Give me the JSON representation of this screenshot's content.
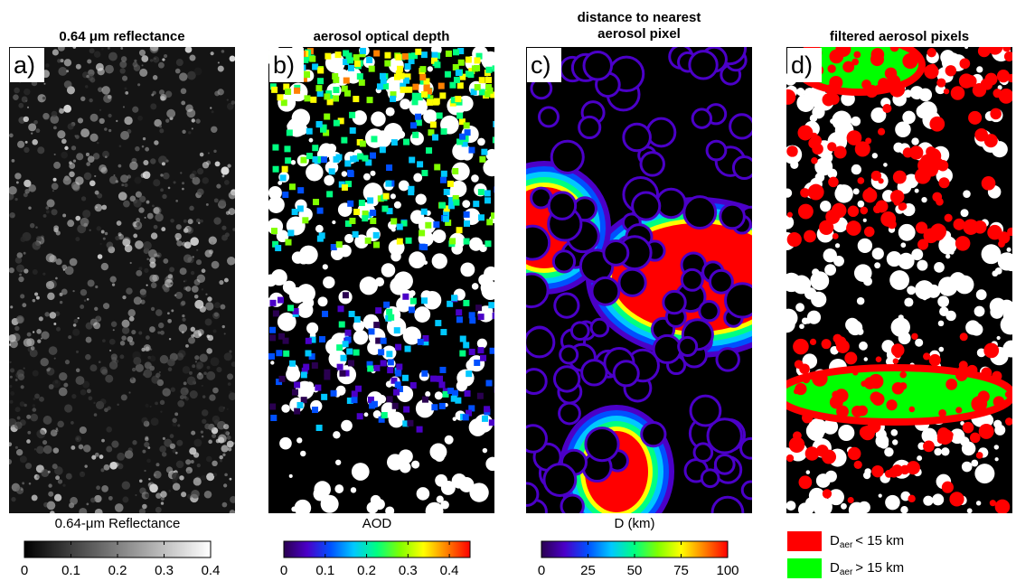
{
  "panels": [
    {
      "title": [
        "0.64 μm reflectance"
      ],
      "letter": "a)",
      "image": "reflectance",
      "colorbar": {
        "label": "0.64-μm Reflectance",
        "lim": [
          0,
          0.4
        ],
        "ticks": [
          0,
          0.1,
          0.2,
          0.3,
          0.4
        ],
        "colormap": [
          "#000000",
          "#ffffff"
        ]
      }
    },
    {
      "title": [
        "aerosol optical depth"
      ],
      "letter": "b)",
      "image": "aod",
      "colorbar": {
        "label": "AOD",
        "lim": [
          0,
          0.45
        ],
        "ticks": [
          0,
          0.1,
          0.2,
          0.3,
          0.4
        ],
        "colormap": [
          "#2a0050",
          "#4b00c8",
          "#0050ff",
          "#00c8ff",
          "#00ff80",
          "#80ff00",
          "#ffff00",
          "#ff8000",
          "#ff0000"
        ]
      }
    },
    {
      "title": [
        "distance to nearest",
        "aerosol pixel"
      ],
      "letter": "c)",
      "image": "distance",
      "colorbar": {
        "label": "D (km)",
        "lim": [
          0,
          100
        ],
        "ticks": [
          0,
          25,
          50,
          75,
          100
        ],
        "colormap": [
          "#2a0050",
          "#4b00c8",
          "#0050ff",
          "#00c8ff",
          "#00ff80",
          "#80ff00",
          "#ffff00",
          "#ff8000",
          "#ff0000"
        ]
      }
    },
    {
      "title": [
        "filtered aerosol pixels"
      ],
      "letter": "d)",
      "image": "filtered"
    }
  ],
  "legend": [
    {
      "symbol": "D",
      "subscript": "aer",
      "text": "< 15 km",
      "color": "#ff0000"
    },
    {
      "symbol": "D",
      "subscript": "aer",
      "text": "> 15 km",
      "color": "#00ff00"
    }
  ]
}
